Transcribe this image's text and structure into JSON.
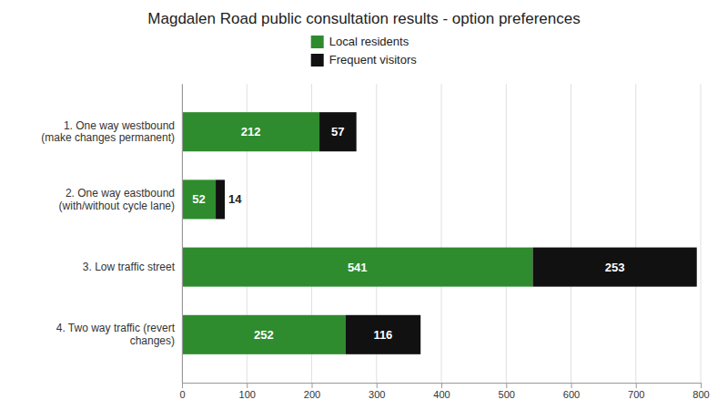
{
  "chart_data": {
    "type": "bar",
    "orientation": "horizontal",
    "stacked": true,
    "title": "Magdalen Road public consultation results - option preferences",
    "categories": [
      "1. One way westbound\n(make changes permanent)",
      "2. One way eastbound\n(with/without cycle lane)",
      "3. Low traffic street",
      "4. Two way traffic (revert\nchanges)"
    ],
    "series": [
      {
        "name": "Local residents",
        "color": "#2e8b2e",
        "values": [
          212,
          52,
          541,
          252
        ]
      },
      {
        "name": "Frequent visitors",
        "color": "#111111",
        "values": [
          57,
          14,
          253,
          116
        ]
      }
    ],
    "xlim": [
      0,
      800
    ],
    "xticks": [
      0,
      100,
      200,
      300,
      400,
      500,
      600,
      700,
      800
    ],
    "grid": true,
    "legend": "top",
    "data_labels": true
  }
}
